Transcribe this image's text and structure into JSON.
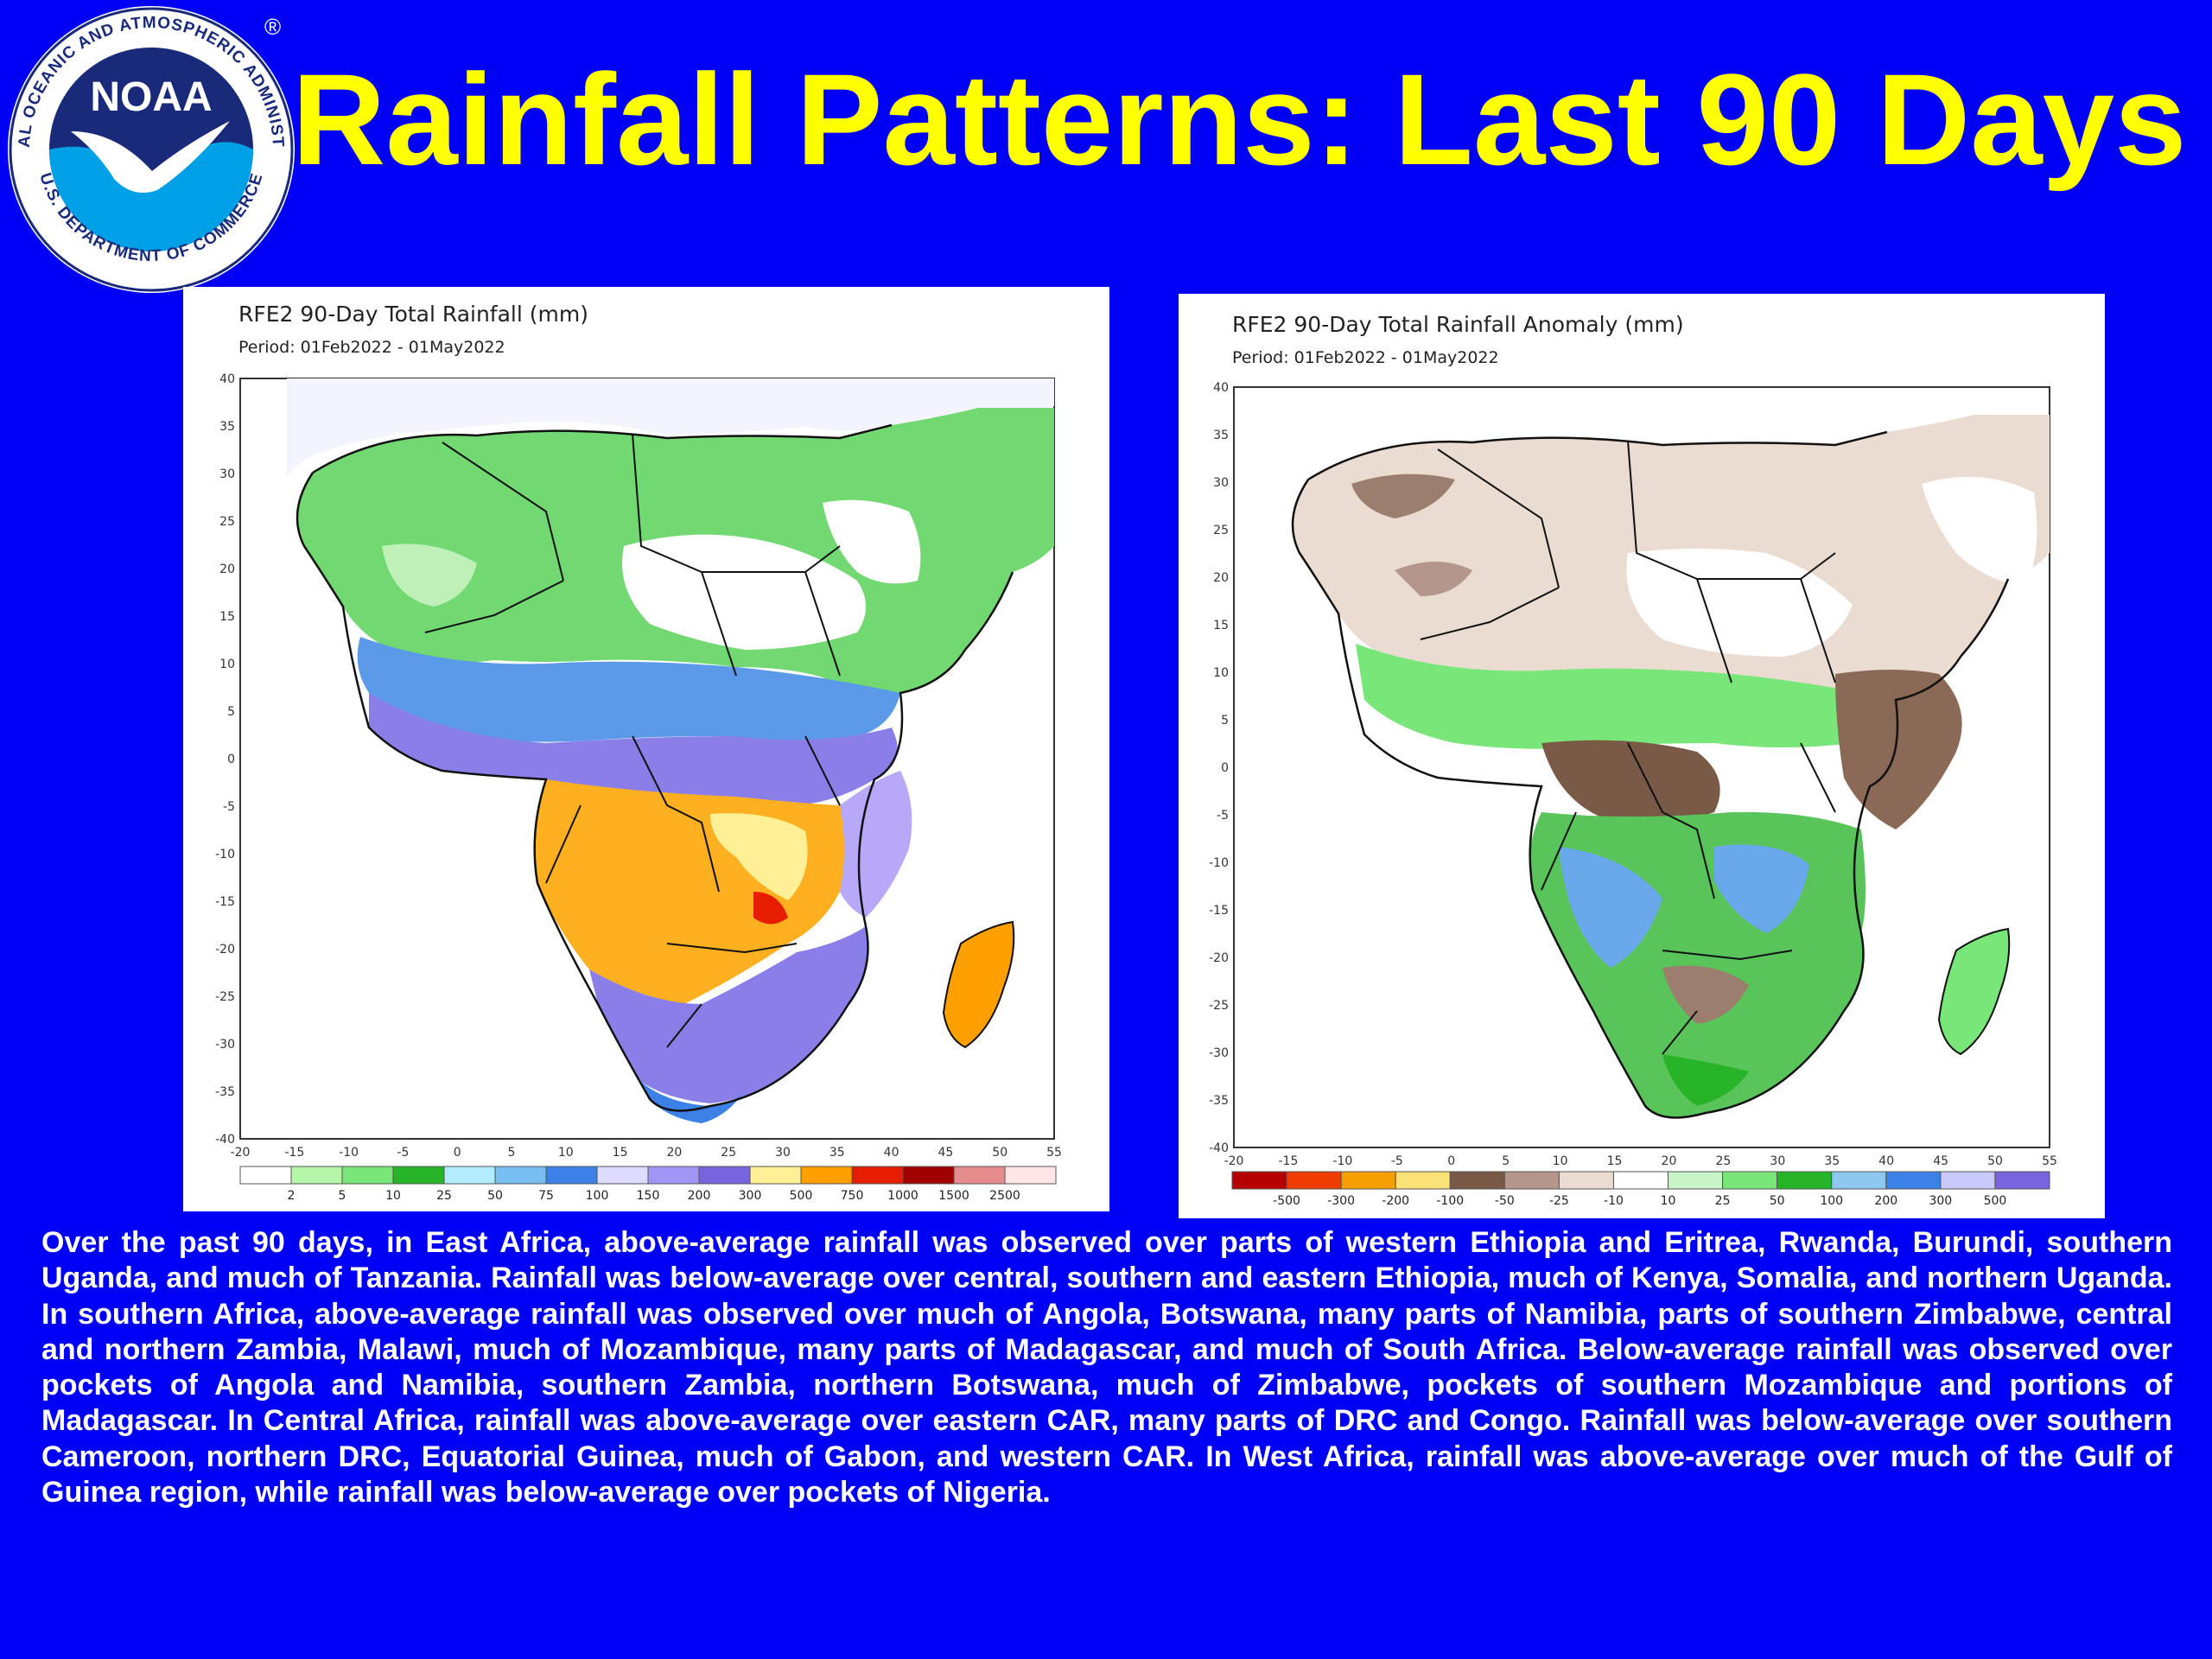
{
  "logo": {
    "center_text": "NOAA",
    "ring_text_top": "NATIONAL OCEANIC AND ATMOSPHERIC ADMINISTRATION",
    "ring_text_bottom": "U.S. DEPARTMENT OF COMMERCE",
    "registered_mark": "®"
  },
  "title": "Rainfall Patterns: Last 90 Days",
  "colors": {
    "background": "#0000f5",
    "title": "#ffff00",
    "body_text": "#ffffff"
  },
  "left_map": {
    "title": "RFE2 90-Day Total Rainfall (mm)",
    "period": "Period: 01Feb2022 - 01May2022",
    "lat_ticks": [
      "40",
      "35",
      "30",
      "25",
      "20",
      "15",
      "10",
      "5",
      "0",
      "-5",
      "-10",
      "-15",
      "-20",
      "-25",
      "-30",
      "-35",
      "-40"
    ],
    "lon_ticks": [
      "-20",
      "-15",
      "-10",
      "-5",
      "0",
      "5",
      "10",
      "15",
      "20",
      "25",
      "30",
      "35",
      "40",
      "45",
      "50",
      "55"
    ],
    "legend_labels": [
      "2",
      "5",
      "10",
      "25",
      "50",
      "75",
      "100",
      "150",
      "200",
      "300",
      "500",
      "750",
      "1000",
      "1500",
      "2500"
    ],
    "legend_colors": [
      "#ffffff",
      "#b4f5a8",
      "#78e678",
      "#28b428",
      "#b4ecff",
      "#78bef0",
      "#3c82e6",
      "#dcdcff",
      "#a096f5",
      "#7864dc",
      "#fff096",
      "#ffa000",
      "#e61e00",
      "#a00000",
      "#e68c8c",
      "#ffe6e6"
    ]
  },
  "right_map": {
    "title": "RFE2 90-Day Total Rainfall Anomaly (mm)",
    "period": "Period: 01Feb2022 - 01May2022",
    "lat_ticks": [
      "40",
      "35",
      "30",
      "25",
      "20",
      "15",
      "10",
      "5",
      "0",
      "-5",
      "-10",
      "-15",
      "-20",
      "-25",
      "-30",
      "-35",
      "-40"
    ],
    "lon_ticks": [
      "-20",
      "-15",
      "-10",
      "-5",
      "0",
      "5",
      "10",
      "15",
      "20",
      "25",
      "30",
      "35",
      "40",
      "45",
      "50",
      "55"
    ],
    "legend_labels": [
      "-500",
      "-300",
      "-200",
      "-100",
      "-50",
      "-25",
      "-10",
      "10",
      "25",
      "50",
      "100",
      "200",
      "300",
      "500"
    ],
    "legend_colors": [
      "#b40000",
      "#f03c00",
      "#f5a000",
      "#fae178",
      "#785a46",
      "#b4968c",
      "#ebdcd2",
      "#ffffff",
      "#c8f5c8",
      "#78e678",
      "#28b428",
      "#8cc8f0",
      "#3c82e6",
      "#c8c8fa",
      "#7864dc"
    ]
  },
  "summary": "Over the past 90 days, in East Africa, above-average rainfall was observed over parts of western Ethiopia and Eritrea, Rwanda, Burundi, southern Uganda, and much of Tanzania. Rainfall was below-average over central, southern and eastern Ethiopia, much of Kenya, Somalia, and northern Uganda. In southern Africa, above-average rainfall was observed over much of Angola, Botswana, many parts of Namibia, parts of southern Zimbabwe, central and northern Zambia, Malawi, much of Mozambique, many parts of Madagascar, and much of South Africa. Below-average rainfall was observed over pockets of Angola and Namibia, southern Zambia, northern Botswana, much of Zimbabwe, pockets of southern Mozambique and portions of Madagascar. In Central Africa, rainfall was above-average over eastern CAR, many parts of DRC and Congo. Rainfall was below-average over southern Cameroon, northern DRC, Equatorial Guinea, much of Gabon, and western CAR. In West Africa, rainfall was above-average over much of the Gulf of Guinea region, while rainfall was below-average over pockets of Nigeria."
}
